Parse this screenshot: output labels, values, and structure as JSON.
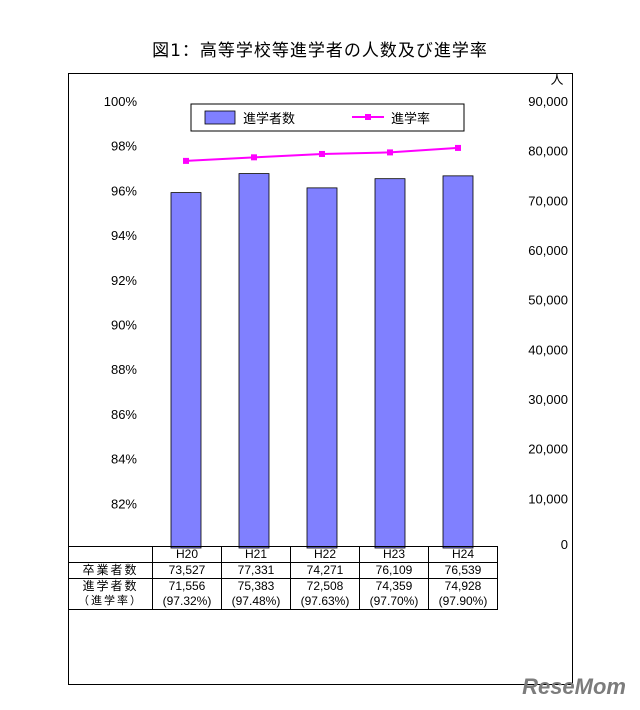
{
  "page": {
    "title": "図1：高等学校等進学者の人数及び進学率",
    "watermark": "ReseMom"
  },
  "chart_data": {
    "type": "bar",
    "title": "図1：高等学校等進学者の人数及び進学率",
    "categories": [
      "H20",
      "H21",
      "H22",
      "H23",
      "H24"
    ],
    "series": [
      {
        "name": "進学者数",
        "type": "bar",
        "axis": "right",
        "color": "#8080ff",
        "values": [
          71556,
          75383,
          72508,
          74359,
          74928
        ]
      },
      {
        "name": "進学率",
        "type": "line",
        "axis": "left",
        "color": "#ff00ff",
        "values": [
          97.32,
          97.48,
          97.63,
          97.7,
          97.9
        ]
      }
    ],
    "left_axis": {
      "min": 80,
      "max": 100,
      "ticks": [
        "82%",
        "84%",
        "86%",
        "88%",
        "90%",
        "92%",
        "94%",
        "96%",
        "98%",
        "100%"
      ]
    },
    "right_axis": {
      "min": 0,
      "max": 90000,
      "unit_label": "人",
      "ticks": [
        "0",
        "10,000",
        "20,000",
        "30,000",
        "40,000",
        "50,000",
        "60,000",
        "70,000",
        "80,000",
        "90,000"
      ]
    },
    "legend_position": "top",
    "grid": false
  },
  "table": {
    "years": [
      "H20",
      "H21",
      "H22",
      "H23",
      "H24"
    ],
    "row1_label": "卒業者数",
    "row1": [
      "73,527",
      "77,331",
      "74,271",
      "76,109",
      "76,539"
    ],
    "row2_label": "進学者数",
    "row2_sublabel": "（進学率）",
    "row2": [
      "71,556",
      "75,383",
      "72,508",
      "74,359",
      "74,928"
    ],
    "row2_rates": [
      "(97.32%)",
      "(97.48%)",
      "(97.63%)",
      "(97.70%)",
      "(97.90%)"
    ]
  }
}
